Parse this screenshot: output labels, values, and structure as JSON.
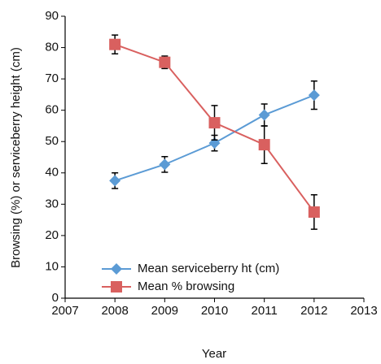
{
  "chart_data": {
    "type": "line",
    "x_label": "Year",
    "y_label": "Browsing (%) or serviceberry height (cm)",
    "x": [
      2008,
      2009,
      2010,
      2011,
      2012
    ],
    "xlim": [
      2007,
      2013
    ],
    "xticks": [
      2007,
      2008,
      2009,
      2010,
      2011,
      2012,
      2013
    ],
    "ylim": [
      0,
      90
    ],
    "yticks": [
      0,
      10,
      20,
      30,
      40,
      50,
      60,
      70,
      80,
      90
    ],
    "grid": false,
    "legend": "lower left",
    "series": [
      {
        "name": "Mean serviceberry ht (cm)",
        "color": "#5b9bd5",
        "marker": "diamond",
        "values": [
          37.5,
          42.7,
          49.5,
          58.5,
          64.8
        ],
        "errors": [
          2.5,
          2.5,
          2.5,
          3.5,
          4.5
        ]
      },
      {
        "name": "Mean % browsing",
        "color": "#d9605f",
        "marker": "square",
        "values": [
          81,
          75.3,
          56,
          49,
          27.5
        ],
        "errors": [
          3,
          2,
          5.5,
          6,
          5.5
        ]
      }
    ]
  }
}
